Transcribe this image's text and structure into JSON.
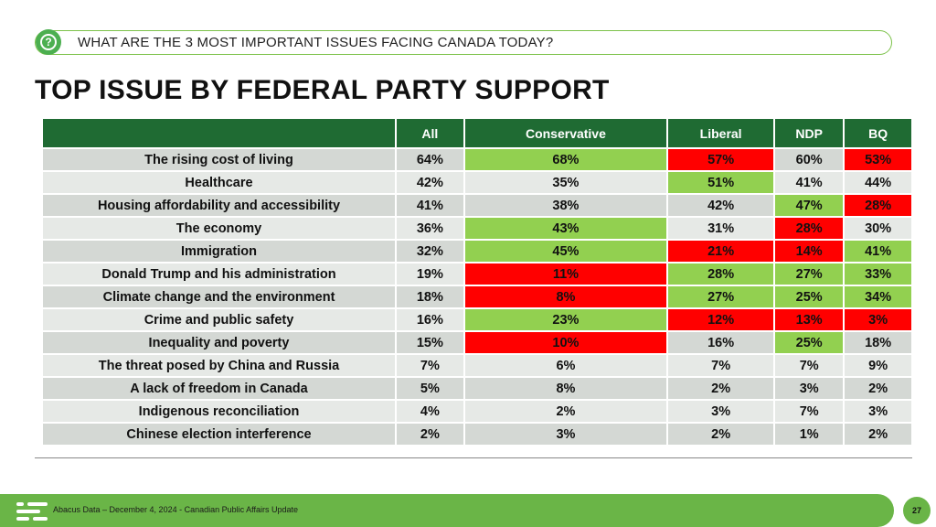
{
  "question": "WHAT ARE THE 3 MOST IMPORTANT ISSUES FACING CANADA TODAY?",
  "question_icon": "?",
  "title": "TOP ISSUE BY FEDERAL PARTY SUPPORT",
  "columns": [
    "All",
    "Conservative",
    "Liberal",
    "NDP",
    "BQ"
  ],
  "colors": {
    "header": "#1f6b33",
    "high": "#92d050",
    "low": "#ff0000",
    "row_a": "#d4d8d4",
    "row_b": "#e6e9e6",
    "footer": "#6ab547"
  },
  "rows": [
    {
      "issue": "The rising cost of living",
      "v": [
        "64%",
        "68%",
        "57%",
        "60%",
        "53%"
      ],
      "c": [
        "",
        "hi",
        "lo",
        "",
        "lo"
      ]
    },
    {
      "issue": "Healthcare",
      "v": [
        "42%",
        "35%",
        "51%",
        "41%",
        "44%"
      ],
      "c": [
        "",
        "",
        "hi",
        "",
        ""
      ]
    },
    {
      "issue": "Housing affordability and accessibility",
      "v": [
        "41%",
        "38%",
        "42%",
        "47%",
        "28%"
      ],
      "c": [
        "",
        "",
        "",
        "hi",
        "lo"
      ]
    },
    {
      "issue": "The economy",
      "v": [
        "36%",
        "43%",
        "31%",
        "28%",
        "30%"
      ],
      "c": [
        "",
        "hi",
        "",
        "lo",
        ""
      ]
    },
    {
      "issue": "Immigration",
      "v": [
        "32%",
        "45%",
        "21%",
        "14%",
        "41%"
      ],
      "c": [
        "",
        "hi",
        "lo",
        "lo",
        "hi"
      ]
    },
    {
      "issue": "Donald Trump and his administration",
      "v": [
        "19%",
        "11%",
        "28%",
        "27%",
        "33%"
      ],
      "c": [
        "",
        "lo",
        "hi",
        "hi",
        "hi"
      ]
    },
    {
      "issue": "Climate change and the environment",
      "v": [
        "18%",
        "8%",
        "27%",
        "25%",
        "34%"
      ],
      "c": [
        "",
        "lo",
        "hi",
        "hi",
        "hi"
      ]
    },
    {
      "issue": "Crime and public safety",
      "v": [
        "16%",
        "23%",
        "12%",
        "13%",
        "3%"
      ],
      "c": [
        "",
        "hi",
        "lo",
        "lo",
        "lo"
      ]
    },
    {
      "issue": "Inequality and poverty",
      "v": [
        "15%",
        "10%",
        "16%",
        "25%",
        "18%"
      ],
      "c": [
        "",
        "lo",
        "",
        "hi",
        ""
      ]
    },
    {
      "issue": "The threat posed by China and Russia",
      "v": [
        "7%",
        "6%",
        "7%",
        "7%",
        "9%"
      ],
      "c": [
        "",
        "",
        "",
        "",
        ""
      ]
    },
    {
      "issue": "A lack of freedom in Canada",
      "v": [
        "5%",
        "8%",
        "2%",
        "3%",
        "2%"
      ],
      "c": [
        "",
        "",
        "",
        "",
        ""
      ]
    },
    {
      "issue": "Indigenous reconciliation",
      "v": [
        "4%",
        "2%",
        "3%",
        "7%",
        "3%"
      ],
      "c": [
        "",
        "",
        "",
        "",
        ""
      ]
    },
    {
      "issue": "Chinese election interference",
      "v": [
        "2%",
        "3%",
        "2%",
        "1%",
        "2%"
      ],
      "c": [
        "",
        "",
        "",
        "",
        ""
      ]
    }
  ],
  "footer": "Abacus Data – December 4, 2024 - Canadian Public Affairs Update",
  "page_number": "27"
}
